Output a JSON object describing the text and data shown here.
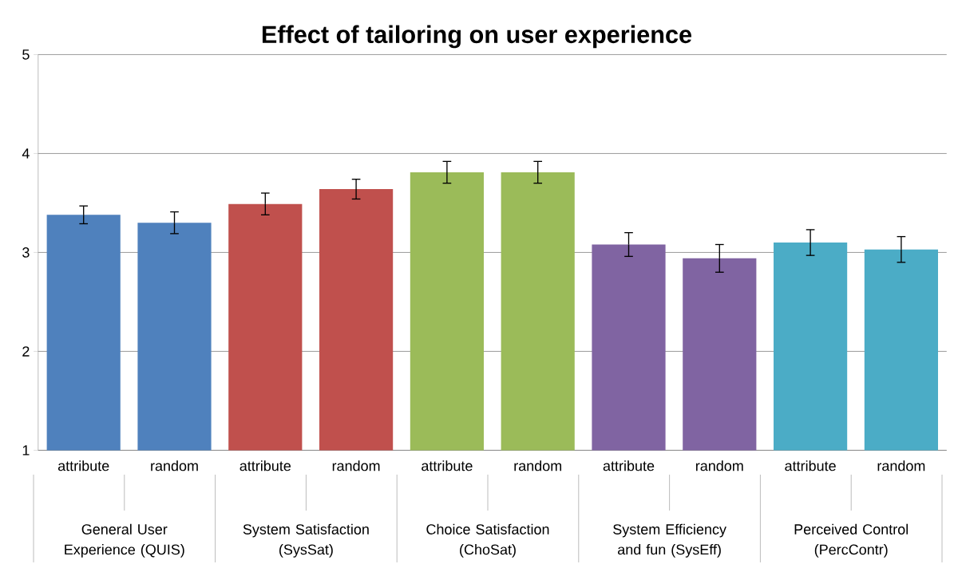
{
  "chart_data": {
    "type": "bar",
    "title": "Effect of tailoring on user experience",
    "categories": [
      "attribute",
      "random",
      "attribute",
      "random",
      "attribute",
      "random",
      "attribute",
      "random",
      "attribute",
      "random"
    ],
    "values": [
      3.38,
      3.3,
      3.49,
      3.64,
      3.81,
      3.81,
      3.08,
      2.94,
      3.1,
      3.03
    ],
    "errors": [
      0.09,
      0.11,
      0.11,
      0.1,
      0.11,
      0.11,
      0.12,
      0.14,
      0.13,
      0.13
    ],
    "colors": [
      "#4f81bd",
      "#4f81bd",
      "#c0504d",
      "#c0504d",
      "#9bbb59",
      "#9bbb59",
      "#8064a2",
      "#8064a2",
      "#4bacc6",
      "#4bacc6"
    ],
    "annotations": [
      "General User Experience (QUIS)",
      "System Satisfaction (SysSat)",
      "Choice Satisfaction (ChoSat)",
      "System Efficiency and fun (SysEff)",
      "Perceived Control (PercContr)"
    ],
    "ylim": [
      1,
      5
    ],
    "yticks": [
      1,
      2,
      3,
      4,
      5
    ],
    "grid": "y"
  }
}
